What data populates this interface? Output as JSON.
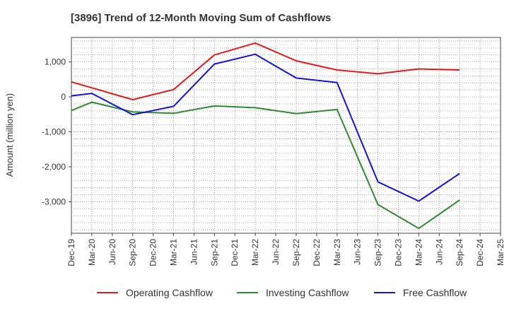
{
  "chart_data": {
    "type": "line",
    "title": "[3896]  Trend of 12-Month Moving Sum of Cashflows",
    "ylabel": "Amount (million yen)",
    "xlabel": "",
    "categories": [
      "Dec-19",
      "Mar-20",
      "Jun-20",
      "Sep-20",
      "Dec-20",
      "Mar-21",
      "Jun-21",
      "Sep-21",
      "Dec-21",
      "Mar-22",
      "Jun-22",
      "Sep-22",
      "Dec-22",
      "Mar-23",
      "Jun-23",
      "Sep-23",
      "Dec-23",
      "Mar-24",
      "Jun-24",
      "Sep-24",
      "Dec-24",
      "Mar-25"
    ],
    "ylim": [
      -3900,
      1700
    ],
    "yticks": [
      1000,
      0,
      -1000,
      -2000,
      -3000
    ],
    "ytick_labels": [
      "1,000",
      "0",
      "-1,000",
      "-2,000",
      "-3,000"
    ],
    "grid": true,
    "legend_position": "bottom",
    "series": [
      {
        "name": "Operating Cashflow",
        "color": "#e31a1c",
        "values": [
          430,
          null,
          null,
          -80,
          null,
          210,
          null,
          1200,
          null,
          1540,
          null,
          1030,
          null,
          770,
          null,
          660,
          null,
          800,
          null,
          770,
          null,
          null
        ]
      },
      {
        "name": "Investing Cashflow",
        "color": "#2e8b2e",
        "values": [
          -390,
          -150,
          null,
          -430,
          null,
          -470,
          null,
          -260,
          null,
          -310,
          null,
          -480,
          null,
          -360,
          null,
          -3080,
          null,
          -3760,
          null,
          -2950,
          null,
          null
        ]
      },
      {
        "name": "Free Cashflow",
        "color": "#1414d6",
        "values": [
          30,
          100,
          null,
          -510,
          null,
          -270,
          null,
          940,
          null,
          1220,
          null,
          540,
          null,
          410,
          null,
          -2430,
          null,
          -2980,
          null,
          -2190,
          null,
          null
        ]
      }
    ]
  }
}
